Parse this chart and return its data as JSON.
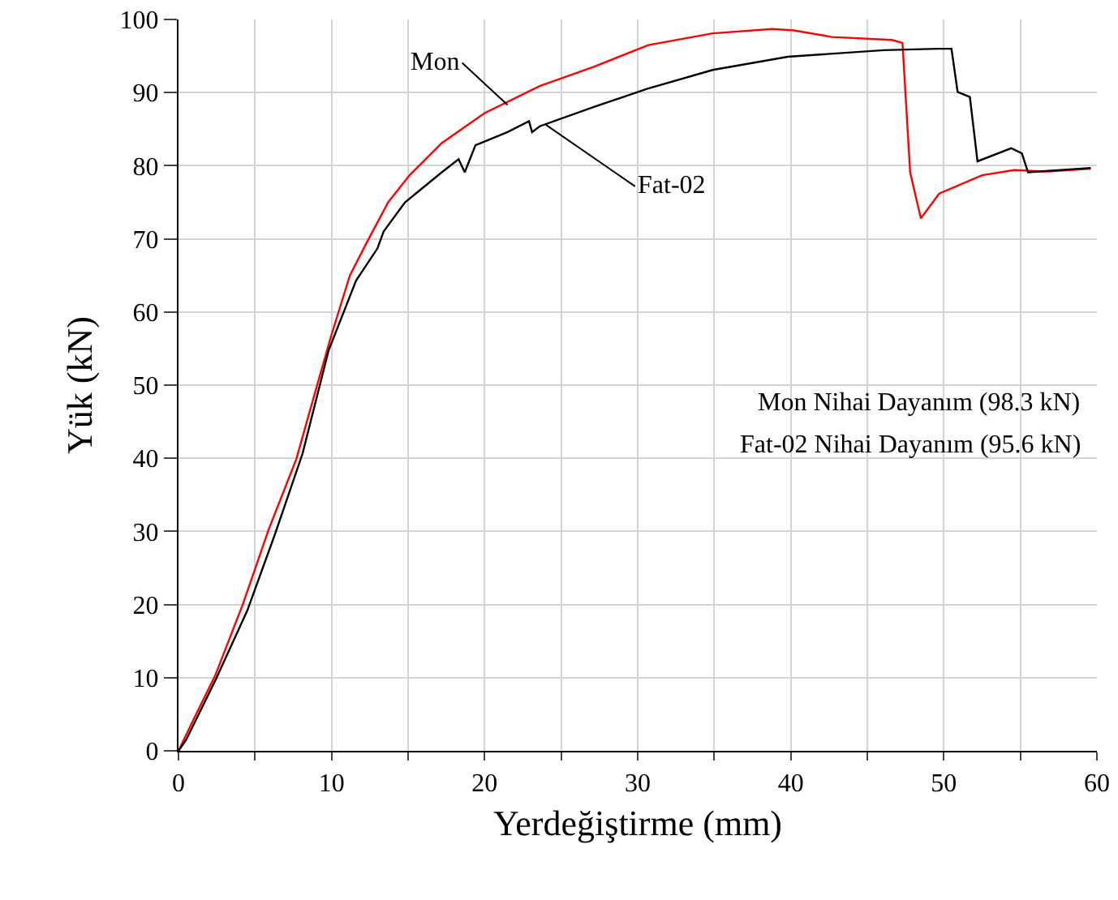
{
  "chart_data": {
    "type": "line",
    "xlabel": "Yerdeğiştirme (mm)",
    "ylabel": "Yük (kN)",
    "xlim": [
      0,
      60
    ],
    "ylim": [
      0,
      100
    ],
    "xticks": [
      0,
      {
        "value": 5,
        "label": null
      },
      10,
      {
        "value": 15,
        "label": null
      },
      20,
      {
        "value": 25,
        "label": null
      },
      30,
      {
        "value": 35,
        "label": null
      },
      40,
      {
        "value": 45,
        "label": null
      },
      50,
      {
        "value": 55,
        "label": null
      },
      60
    ],
    "yticks": [
      0,
      10,
      20,
      30,
      40,
      50,
      60,
      70,
      80,
      90,
      100
    ],
    "grid": true,
    "legend": false,
    "marker": "none",
    "line_style": "solid",
    "series": [
      {
        "name": "Mon",
        "color": "#ff0000",
        "x": [
          0,
          1.2,
          2.4,
          4.2,
          5.9,
          7.7,
          9.1,
          10,
          11.2,
          12.3,
          13.7,
          15.1,
          17.2,
          20,
          23.6,
          27.1,
          30.7,
          34.9,
          38.8,
          40.2,
          42.7,
          46.6,
          47.3,
          47.8,
          48.5,
          49.7,
          52.5,
          54.6,
          56.8,
          59.6
        ],
        "values": [
          0,
          5.2,
          10.3,
          20,
          30.3,
          39.9,
          50.3,
          56.9,
          65,
          69.5,
          75,
          78.7,
          83.1,
          87.2,
          90.9,
          93.5,
          96.5,
          98.1,
          98.7,
          98.5,
          97.6,
          97.2,
          96.8,
          79.1,
          72.8,
          76.2,
          78.7,
          79.4,
          79.2,
          79.6
        ]
      },
      {
        "name": "Fat-02",
        "color": "#000000",
        "x": [
          0,
          0.5,
          2.4,
          4.5,
          6.3,
          8.1,
          9.8,
          11.6,
          13,
          13.4,
          14.8,
          17.2,
          18.3,
          18.7,
          19.4,
          21.5,
          22.9,
          23.1,
          23.6,
          27.1,
          30.6,
          34.9,
          39.8,
          46.1,
          49.6,
          50.5,
          50.9,
          51.7,
          52.2,
          54.4,
          55.1,
          55.5,
          59.6
        ],
        "values": [
          0,
          1.5,
          9.6,
          19.2,
          29.6,
          40.6,
          54.7,
          64.3,
          68.7,
          71,
          75,
          79.1,
          80.9,
          79.1,
          82.8,
          84.6,
          86.1,
          84.6,
          85.4,
          88,
          90.5,
          93.1,
          94.9,
          95.8,
          96,
          96,
          90.1,
          89.4,
          80.6,
          82.4,
          81.7,
          79.1,
          79.7
        ]
      }
    ],
    "annotations": [
      "Mon Nihai Dayanım (98.3 kN)",
      "Fat-02 Nihai Dayanım (95.6 kN)"
    ]
  }
}
